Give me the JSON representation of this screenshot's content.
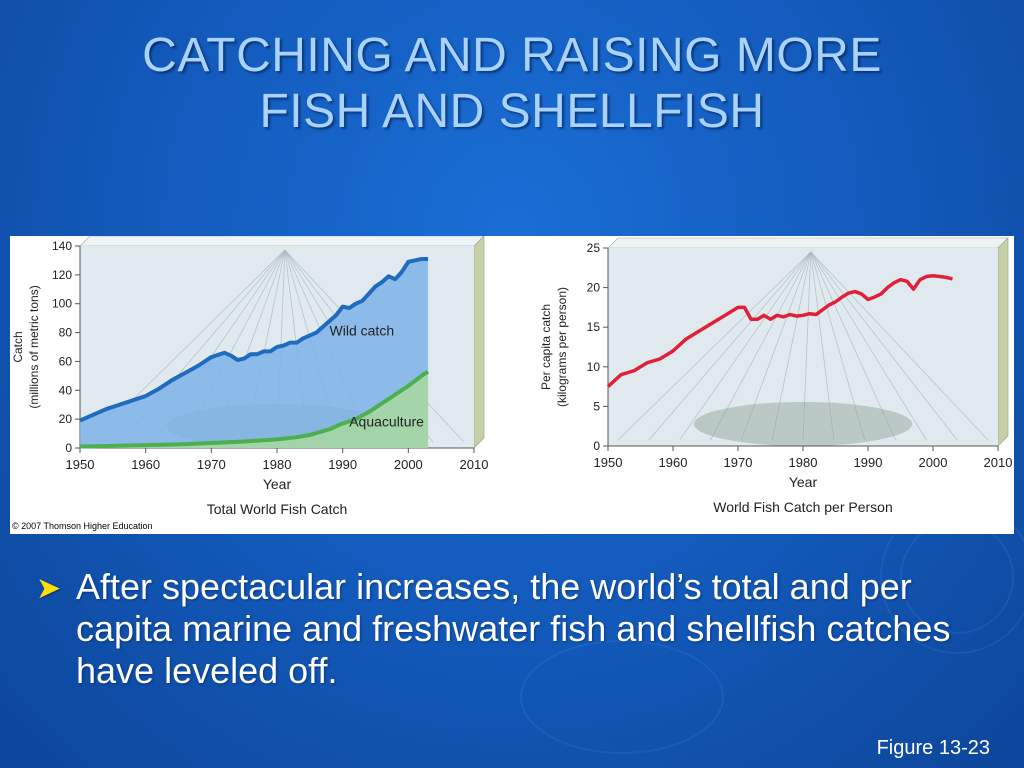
{
  "slide": {
    "title_line1": "CATCHING AND RAISING MORE",
    "title_line2": "FISH AND SHELLFISH",
    "bullet": "After spectacular increases, the world’s total and per capita marine and freshwater fish and shellfish catches have leveled off.",
    "figure_caption": "Figure 13-23",
    "copyright": "© 2007 Thomson Higher Education"
  },
  "colors": {
    "background": "#1258b8",
    "title": "#a9d2ff",
    "bullet_arrow": "#ffe000",
    "wild_line": "#1f6bbf",
    "wild_fill": "#7fb3e8",
    "aquaculture": "#4caf50",
    "per_capita": "#e0203a"
  },
  "chart_data": [
    {
      "type": "area",
      "title": "Total World Fish Catch",
      "xlabel": "Year",
      "ylabel": "Catch (millions of metric tons)",
      "ylabel_line1": "Catch",
      "ylabel_line2": "(millions of metric tons)",
      "xlim": [
        1950,
        2010
      ],
      "ylim": [
        0,
        140
      ],
      "x_ticks": [
        1950,
        1960,
        1970,
        1980,
        1990,
        2000,
        2010
      ],
      "y_ticks": [
        0,
        20,
        40,
        60,
        80,
        100,
        120,
        140
      ],
      "annotations": [
        "Wild catch",
        "Aquaculture"
      ],
      "series": [
        {
          "name": "Wild catch",
          "x": [
            1950,
            1952,
            1954,
            1956,
            1958,
            1960,
            1962,
            1964,
            1966,
            1968,
            1970,
            1972,
            1973,
            1974,
            1975,
            1976,
            1977,
            1978,
            1979,
            1980,
            1981,
            1982,
            1983,
            1984,
            1985,
            1986,
            1987,
            1988,
            1989,
            1990,
            1991,
            1992,
            1993,
            1994,
            1995,
            1996,
            1997,
            1998,
            1999,
            2000,
            2001,
            2002,
            2003
          ],
          "values": [
            19,
            23,
            27,
            30,
            33,
            36,
            41,
            47,
            52,
            57,
            63,
            66,
            64,
            61,
            62,
            65,
            65,
            67,
            67,
            70,
            71,
            73,
            73,
            76,
            78,
            80,
            84,
            88,
            92,
            98,
            97,
            100,
            102,
            107,
            112,
            115,
            119,
            117,
            122,
            129,
            130,
            131,
            131
          ]
        },
        {
          "name": "Aquaculture",
          "x": [
            1950,
            1955,
            1960,
            1965,
            1970,
            1975,
            1980,
            1983,
            1985,
            1988,
            1990,
            1992,
            1994,
            1996,
            1998,
            2000,
            2002,
            2003
          ],
          "values": [
            1,
            1.5,
            2,
            2.5,
            3.5,
            4.5,
            6,
            7.5,
            9,
            13,
            17,
            20,
            25,
            31,
            37,
            43,
            50,
            53
          ]
        }
      ]
    },
    {
      "type": "line",
      "title": "World Fish Catch per Person",
      "xlabel": "Year",
      "ylabel": "Per capita catch (kilograms per person)",
      "ylabel_line1": "Per capita catch",
      "ylabel_line2": "(kilograms per person)",
      "xlim": [
        1950,
        2010
      ],
      "ylim": [
        0,
        25
      ],
      "x_ticks": [
        1950,
        1960,
        1970,
        1980,
        1990,
        2000,
        2010
      ],
      "y_ticks": [
        0,
        5,
        10,
        15,
        20,
        25
      ],
      "series": [
        {
          "x": [
            1950,
            1952,
            1954,
            1956,
            1958,
            1960,
            1962,
            1964,
            1966,
            1968,
            1970,
            1971,
            1972,
            1973,
            1974,
            1975,
            1976,
            1977,
            1978,
            1979,
            1980,
            1981,
            1982,
            1983,
            1984,
            1985,
            1986,
            1987,
            1988,
            1989,
            1990,
            1991,
            1992,
            1993,
            1994,
            1995,
            1996,
            1997,
            1998,
            1999,
            2000,
            2001,
            2002,
            2003
          ],
          "values": [
            7.5,
            9,
            9.5,
            10.5,
            11,
            12,
            13.5,
            14.5,
            15.5,
            16.5,
            17.5,
            17.5,
            16,
            16,
            16.5,
            16,
            16.5,
            16.3,
            16.6,
            16.4,
            16.5,
            16.7,
            16.6,
            17.2,
            17.8,
            18.2,
            18.8,
            19.3,
            19.5,
            19.2,
            18.5,
            18.8,
            19.2,
            20,
            20.6,
            21,
            20.8,
            19.8,
            21,
            21.4,
            21.5,
            21.4,
            21.3,
            21.1
          ]
        }
      ]
    }
  ]
}
